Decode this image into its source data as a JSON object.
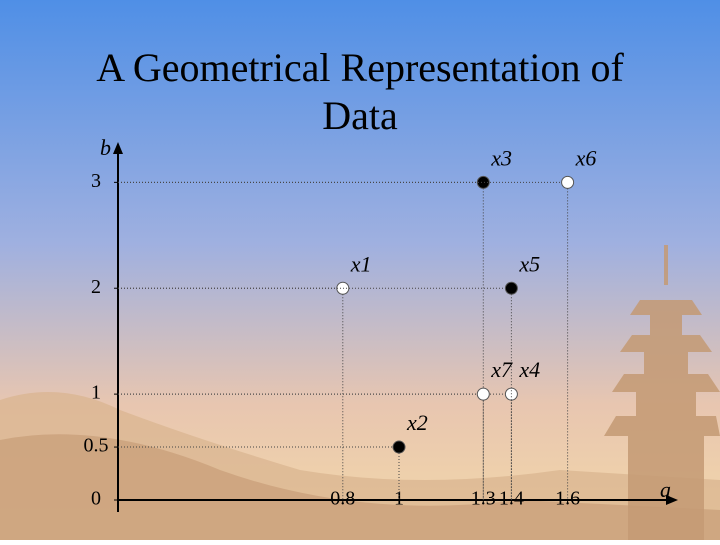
{
  "chart_data": {
    "type": "scatter",
    "title": "A Geometrical Representation of Data",
    "xlabel": "a",
    "ylabel": "b",
    "point_labels": [
      "x1",
      "x2",
      "x3",
      "x4",
      "x5",
      "x6",
      "x7"
    ],
    "x": [
      0.8,
      1,
      1.3,
      1.4,
      1.4,
      1.6,
      1.3
    ],
    "values": [
      2,
      0.5,
      3,
      1,
      2,
      3,
      1
    ],
    "colors": [
      "#ffffff",
      "#000000",
      "#000000",
      "#ffffff",
      "#000000",
      "#ffffff",
      "#ffffff"
    ],
    "xlim": [
      0,
      2
    ],
    "ylim": [
      0,
      3.4
    ],
    "xticks": [
      0.8,
      1,
      1.3,
      1.4,
      1.6
    ],
    "yticks": [
      0,
      0.5,
      1,
      2,
      3
    ],
    "guide_lines": true
  }
}
